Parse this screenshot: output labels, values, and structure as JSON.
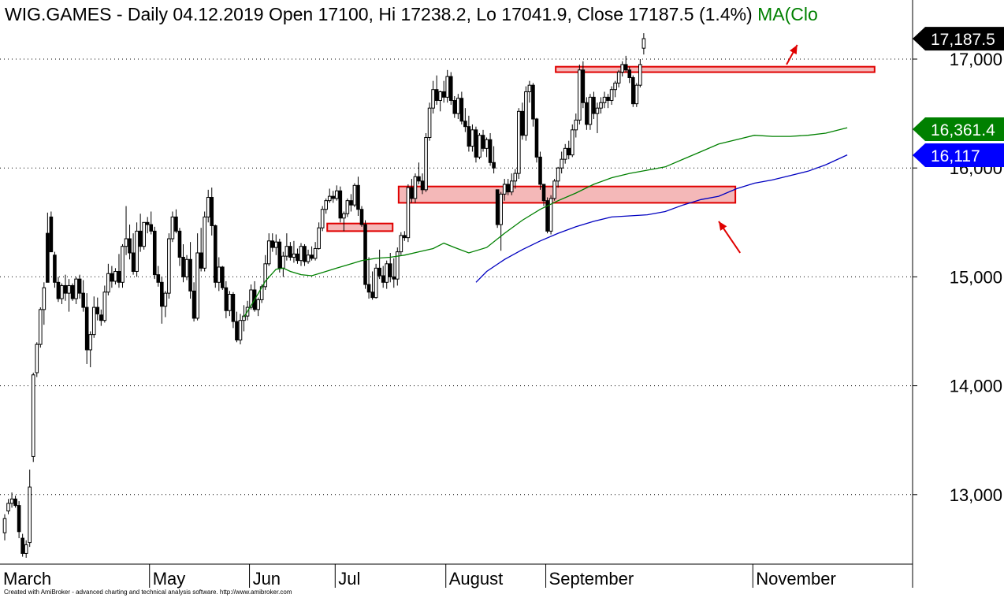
{
  "header": {
    "symbol": "WIG.GAMES",
    "period": "Daily",
    "date": "04.12.2019",
    "ohlc_text": "Open 17100, Hi 17238.2, Lo 17041.9, Close 17187.5 (1.4%)",
    "ma_text": "MA(Clo"
  },
  "footer": {
    "text": "Created with AmiBroker - advanced charting and technical analysis software. http://www.amibroker.com"
  },
  "colors": {
    "candle_up_fill": "#ffffff",
    "candle_down_fill": "#000000",
    "ma_short": "#008000",
    "ma_long": "#0000c0",
    "zone_fill": "#f4b8b8",
    "zone_stroke": "#e00000",
    "arrow": "#e00000",
    "last_badge": "#000000",
    "ma_short_badge": "#008000",
    "ma_long_badge": "#0000ff"
  },
  "chart_data": {
    "type": "candlestick",
    "title": "WIG.GAMES - Daily 04.12.2019 Open 17100, Hi 17238.2, Lo 17041.9, Close 17187.5 (1.4%)",
    "ylim": [
      12300,
      17500
    ],
    "y_ticks": [
      {
        "value": 13000,
        "label": "13,000"
      },
      {
        "value": 14000,
        "label": "14,000"
      },
      {
        "value": 15000,
        "label": "15,000"
      },
      {
        "value": 16000,
        "label": "16,000"
      },
      {
        "value": 17000,
        "label": "17,000"
      }
    ],
    "grid": "horizontal-dotted",
    "x_months": [
      {
        "label": "March",
        "index": 0
      },
      {
        "label": "May",
        "index": 41
      },
      {
        "label": "Jun",
        "index": 69
      },
      {
        "label": "Jul",
        "index": 93
      },
      {
        "label": "August",
        "index": 124
      },
      {
        "label": "September",
        "index": 152
      },
      {
        "label": "November",
        "index": 210
      }
    ],
    "value_badges": [
      {
        "label": "17,187.5",
        "value": 17187.5,
        "kind": "last"
      },
      {
        "label": "16,361.4",
        "value": 16361.4,
        "kind": "ma_short"
      },
      {
        "label": "16,117",
        "value": 16117,
        "kind": "ma_long"
      }
    ],
    "zones": [
      {
        "start_index": 91,
        "end_index": 108,
        "top": 15490,
        "bottom": 15420
      },
      {
        "start_index": 111,
        "end_index": 204,
        "top": 15830,
        "bottom": 15680
      },
      {
        "start_index": 155,
        "end_index": 243,
        "top": 16930,
        "bottom": 16880
      }
    ],
    "arrows": [
      {
        "from": {
          "index": 219,
          "value": 16950
        },
        "to": {
          "index": 222,
          "value": 17130
        }
      },
      {
        "from": {
          "index": 206,
          "value": 15220
        },
        "to": {
          "index": 200,
          "value": 15510
        }
      }
    ],
    "ma_short_series": [
      [
        67,
        14630
      ],
      [
        70,
        14790
      ],
      [
        73,
        14960
      ],
      [
        76,
        15070
      ],
      [
        78,
        15080
      ],
      [
        80,
        15050
      ],
      [
        83,
        15020
      ],
      [
        86,
        15010
      ],
      [
        89,
        15040
      ],
      [
        93,
        15080
      ],
      [
        96,
        15110
      ],
      [
        100,
        15150
      ],
      [
        104,
        15170
      ],
      [
        108,
        15180
      ],
      [
        112,
        15200
      ],
      [
        116,
        15230
      ],
      [
        120,
        15260
      ],
      [
        123,
        15310
      ],
      [
        126,
        15270
      ],
      [
        130,
        15220
      ],
      [
        135,
        15270
      ],
      [
        140,
        15400
      ],
      [
        145,
        15520
      ],
      [
        150,
        15620
      ],
      [
        155,
        15700
      ],
      [
        160,
        15770
      ],
      [
        165,
        15850
      ],
      [
        170,
        15910
      ],
      [
        175,
        15950
      ],
      [
        180,
        15980
      ],
      [
        185,
        16010
      ],
      [
        190,
        16080
      ],
      [
        195,
        16150
      ],
      [
        200,
        16220
      ],
      [
        205,
        16260
      ],
      [
        210,
        16300
      ],
      [
        215,
        16290
      ],
      [
        220,
        16290
      ],
      [
        225,
        16300
      ],
      [
        230,
        16320
      ],
      [
        236,
        16370
      ]
    ],
    "ma_long_series": [
      [
        132,
        14950
      ],
      [
        135,
        15050
      ],
      [
        140,
        15160
      ],
      [
        145,
        15250
      ],
      [
        150,
        15330
      ],
      [
        155,
        15400
      ],
      [
        160,
        15460
      ],
      [
        165,
        15510
      ],
      [
        170,
        15550
      ],
      [
        175,
        15560
      ],
      [
        180,
        15570
      ],
      [
        185,
        15600
      ],
      [
        190,
        15660
      ],
      [
        195,
        15710
      ],
      [
        200,
        15740
      ],
      [
        205,
        15810
      ],
      [
        210,
        15860
      ],
      [
        215,
        15890
      ],
      [
        220,
        15930
      ],
      [
        225,
        15970
      ],
      [
        230,
        16030
      ],
      [
        236,
        16120
      ]
    ],
    "candles": [
      [
        12650,
        12820,
        12580,
        12780
      ],
      [
        12850,
        12960,
        12820,
        12920
      ],
      [
        12920,
        13020,
        12880,
        12960
      ],
      [
        12960,
        12990,
        12880,
        12900
      ],
      [
        12900,
        12940,
        12600,
        12660
      ],
      [
        12600,
        12640,
        12430,
        12460
      ],
      [
        12460,
        12580,
        12420,
        12540
      ],
      [
        12560,
        13230,
        12520,
        13070
      ],
      [
        13350,
        14120,
        13300,
        14100
      ],
      [
        14120,
        14400,
        14080,
        14380
      ],
      [
        14380,
        14720,
        14350,
        14700
      ],
      [
        14700,
        14950,
        14560,
        14900
      ],
      [
        15400,
        15590,
        14950,
        14950
      ],
      [
        15550,
        15600,
        15230,
        15230
      ],
      [
        15200,
        15230,
        14900,
        14950
      ],
      [
        14950,
        15000,
        14770,
        14800
      ],
      [
        14800,
        14940,
        14750,
        14920
      ],
      [
        14920,
        15020,
        14780,
        14850
      ],
      [
        14850,
        14980,
        14680,
        14920
      ],
      [
        14920,
        14940,
        14780,
        14800
      ],
      [
        14800,
        15000,
        14750,
        14980
      ],
      [
        14980,
        15020,
        14800,
        14850
      ],
      [
        14850,
        14970,
        14680,
        14720
      ],
      [
        14720,
        14850,
        14200,
        14330
      ],
      [
        14330,
        14500,
        14170,
        14470
      ],
      [
        14470,
        14820,
        14440,
        14720
      ],
      [
        14720,
        14810,
        14600,
        14660
      ],
      [
        14650,
        14700,
        14550,
        14600
      ],
      [
        14600,
        14920,
        14580,
        14860
      ],
      [
        14860,
        15120,
        14830,
        15030
      ],
      [
        15030,
        15100,
        14900,
        14960
      ],
      [
        14960,
        15080,
        14930,
        15050
      ],
      [
        15050,
        15210,
        14900,
        14950
      ],
      [
        14950,
        15300,
        14900,
        15280
      ],
      [
        15280,
        15650,
        15200,
        15350
      ],
      [
        15350,
        15480,
        15160,
        15220
      ],
      [
        15220,
        15400,
        15020,
        15050
      ],
      [
        15050,
        15500,
        15000,
        15420
      ],
      [
        15420,
        15580,
        15230,
        15280
      ],
      [
        15280,
        15500,
        15250,
        15500
      ],
      [
        15500,
        15550,
        15400,
        15480
      ],
      [
        15480,
        15600,
        15390,
        15420
      ],
      [
        15420,
        15460,
        14980,
        15020
      ],
      [
        15020,
        15100,
        14910,
        14950
      ],
      [
        14950,
        15000,
        14570,
        14730
      ],
      [
        14730,
        14870,
        14630,
        14850
      ],
      [
        14850,
        15400,
        14800,
        15350
      ],
      [
        15350,
        15600,
        15320,
        15550
      ],
      [
        15550,
        15620,
        15400,
        15420
      ],
      [
        15420,
        15450,
        15100,
        15180
      ],
      [
        15180,
        15300,
        14950,
        15000
      ],
      [
        15000,
        15200,
        14970,
        15160
      ],
      [
        15160,
        15320,
        14800,
        14870
      ],
      [
        14870,
        14950,
        14590,
        14620
      ],
      [
        14620,
        15400,
        14600,
        15220
      ],
      [
        15220,
        15450,
        15050,
        15080
      ],
      [
        15080,
        15600,
        15050,
        15550
      ],
      [
        15550,
        15800,
        15500,
        15730
      ],
      [
        15730,
        15820,
        15380,
        15470
      ],
      [
        15470,
        15480,
        14900,
        14950
      ],
      [
        14950,
        15180,
        14870,
        15090
      ],
      [
        15090,
        15100,
        14880,
        14900
      ],
      [
        14900,
        14960,
        14620,
        14690
      ],
      [
        14690,
        14870,
        14640,
        14840
      ],
      [
        14840,
        14860,
        14530,
        14590
      ],
      [
        14590,
        14680,
        14400,
        14420
      ],
      [
        14420,
        14660,
        14380,
        14600
      ],
      [
        14600,
        14740,
        14500,
        14640
      ],
      [
        14640,
        14780,
        14600,
        14720
      ],
      [
        14720,
        14930,
        14700,
        14880
      ],
      [
        14880,
        14960,
        14680,
        14700
      ],
      [
        14700,
        14810,
        14640,
        14790
      ],
      [
        14790,
        14930,
        14760,
        14910
      ],
      [
        14910,
        15200,
        14880,
        15120
      ],
      [
        15120,
        15400,
        15100,
        15330
      ],
      [
        15330,
        15400,
        15230,
        15270
      ],
      [
        15270,
        15390,
        15200,
        15320
      ],
      [
        15320,
        15350,
        15040,
        15080
      ],
      [
        15080,
        15230,
        15000,
        15190
      ],
      [
        15190,
        15400,
        15150,
        15280
      ],
      [
        15280,
        15320,
        15150,
        15180
      ],
      [
        15180,
        15330,
        15130,
        15210
      ],
      [
        15210,
        15260,
        15120,
        15150
      ],
      [
        15150,
        15310,
        15100,
        15280
      ],
      [
        15280,
        15300,
        15100,
        15140
      ],
      [
        15140,
        15250,
        15120,
        15200
      ],
      [
        15200,
        15280,
        15150,
        15170
      ],
      [
        15170,
        15320,
        15150,
        15260
      ],
      [
        15260,
        15500,
        15250,
        15450
      ],
      [
        15450,
        15650,
        15420,
        15620
      ],
      [
        15620,
        15720,
        15580,
        15700
      ],
      [
        15700,
        15810,
        15680,
        15740
      ],
      [
        15740,
        15790,
        15680,
        15720
      ],
      [
        15720,
        15840,
        15700,
        15790
      ],
      [
        15790,
        15830,
        15500,
        15540
      ],
      [
        15540,
        15600,
        15420,
        15580
      ],
      [
        15580,
        15720,
        15550,
        15700
      ],
      [
        15700,
        15760,
        15600,
        15660
      ],
      [
        15660,
        15860,
        15640,
        15840
      ],
      [
        15840,
        15920,
        15560,
        15620
      ],
      [
        15620,
        15650,
        15460,
        15480
      ],
      [
        15480,
        15520,
        14890,
        14930
      ],
      [
        14930,
        15180,
        14800,
        14860
      ],
      [
        14860,
        15050,
        14790,
        14810
      ],
      [
        14810,
        15120,
        14800,
        15080
      ],
      [
        15080,
        15250,
        14980,
        15010
      ],
      [
        15010,
        15100,
        14900,
        14950
      ],
      [
        14950,
        15150,
        14890,
        15120
      ],
      [
        15120,
        15220,
        14950,
        15000
      ],
      [
        15000,
        15170,
        14900,
        14980
      ],
      [
        14980,
        15270,
        14920,
        15230
      ],
      [
        15230,
        15410,
        15200,
        15380
      ],
      [
        15380,
        15420,
        15330,
        15360
      ],
      [
        15360,
        15850,
        15320,
        15820
      ],
      [
        15820,
        15900,
        15680,
        15720
      ],
      [
        15720,
        15950,
        15680,
        15920
      ],
      [
        15920,
        16050,
        15850,
        15880
      ],
      [
        15880,
        15950,
        15760,
        15800
      ],
      [
        15800,
        16320,
        15780,
        16280
      ],
      [
        16280,
        16600,
        16250,
        16550
      ],
      [
        16550,
        16800,
        16500,
        16720
      ],
      [
        16720,
        16850,
        16580,
        16620
      ],
      [
        16620,
        16710,
        16520,
        16700
      ],
      [
        16700,
        16800,
        16600,
        16650
      ],
      [
        16650,
        16900,
        16600,
        16840
      ],
      [
        16840,
        16880,
        16580,
        16620
      ],
      [
        16620,
        16660,
        16460,
        16500
      ],
      [
        16500,
        16680,
        16450,
        16640
      ],
      [
        16640,
        16700,
        16400,
        16430
      ],
      [
        16430,
        16550,
        16330,
        16380
      ],
      [
        16380,
        16480,
        16150,
        16200
      ],
      [
        16200,
        16400,
        16150,
        16350
      ],
      [
        16350,
        16380,
        16050,
        16100
      ],
      [
        16100,
        16320,
        16080,
        16300
      ],
      [
        16300,
        16350,
        16150,
        16180
      ],
      [
        16180,
        16280,
        16100,
        16260
      ],
      [
        16260,
        16320,
        16020,
        16050
      ],
      [
        16050,
        16200,
        15950,
        16000
      ],
      [
        15800,
        15800,
        15450,
        15480
      ],
      [
        15480,
        15780,
        15240,
        15760
      ],
      [
        15760,
        15900,
        15700,
        15850
      ],
      [
        15850,
        15900,
        15750,
        15780
      ],
      [
        15780,
        15950,
        15750,
        15880
      ],
      [
        15880,
        15990,
        15810,
        15950
      ],
      [
        15950,
        16550,
        15900,
        16520
      ],
      [
        16520,
        16600,
        16260,
        16300
      ],
      [
        16300,
        16750,
        16250,
        16700
      ],
      [
        16700,
        16800,
        16600,
        16760
      ],
      [
        16760,
        16780,
        16380,
        16450
      ],
      [
        16450,
        16460,
        16050,
        16100
      ],
      [
        16100,
        16150,
        15800,
        15850
      ],
      [
        15850,
        15850,
        15650,
        15700
      ],
      [
        15700,
        15730,
        15400,
        15420
      ],
      [
        15420,
        15750,
        15390,
        15720
      ],
      [
        15720,
        15900,
        15700,
        15880
      ],
      [
        15880,
        16010,
        15820,
        16000
      ],
      [
        16000,
        16150,
        15950,
        16080
      ],
      [
        16080,
        16220,
        16040,
        16180
      ],
      [
        16180,
        16250,
        16080,
        16120
      ],
      [
        16120,
        16400,
        16100,
        16350
      ],
      [
        16350,
        16500,
        16280,
        16440
      ],
      [
        16440,
        16950,
        16400,
        16900
      ],
      [
        16900,
        16980,
        16550,
        16600
      ],
      [
        16600,
        16650,
        16350,
        16400
      ],
      [
        16400,
        16680,
        16350,
        16650
      ],
      [
        16650,
        16700,
        16450,
        16500
      ],
      [
        16500,
        16600,
        16320,
        16550
      ],
      [
        16550,
        16650,
        16500,
        16600
      ],
      [
        16600,
        16700,
        16550,
        16650
      ],
      [
        16650,
        16680,
        16550,
        16620
      ],
      [
        16620,
        16750,
        16580,
        16720
      ],
      [
        16720,
        16800,
        16650,
        16780
      ],
      [
        16780,
        16900,
        16740,
        16880
      ],
      [
        16880,
        16980,
        16840,
        16950
      ],
      [
        16950,
        17030,
        16880,
        16900
      ],
      [
        16900,
        16930,
        16780,
        16830
      ],
      [
        16830,
        16850,
        16560,
        16590
      ],
      [
        16590,
        16780,
        16560,
        16760
      ],
      [
        16760,
        17000,
        16740,
        16950
      ],
      [
        17100,
        17238,
        17042,
        17188
      ]
    ]
  }
}
